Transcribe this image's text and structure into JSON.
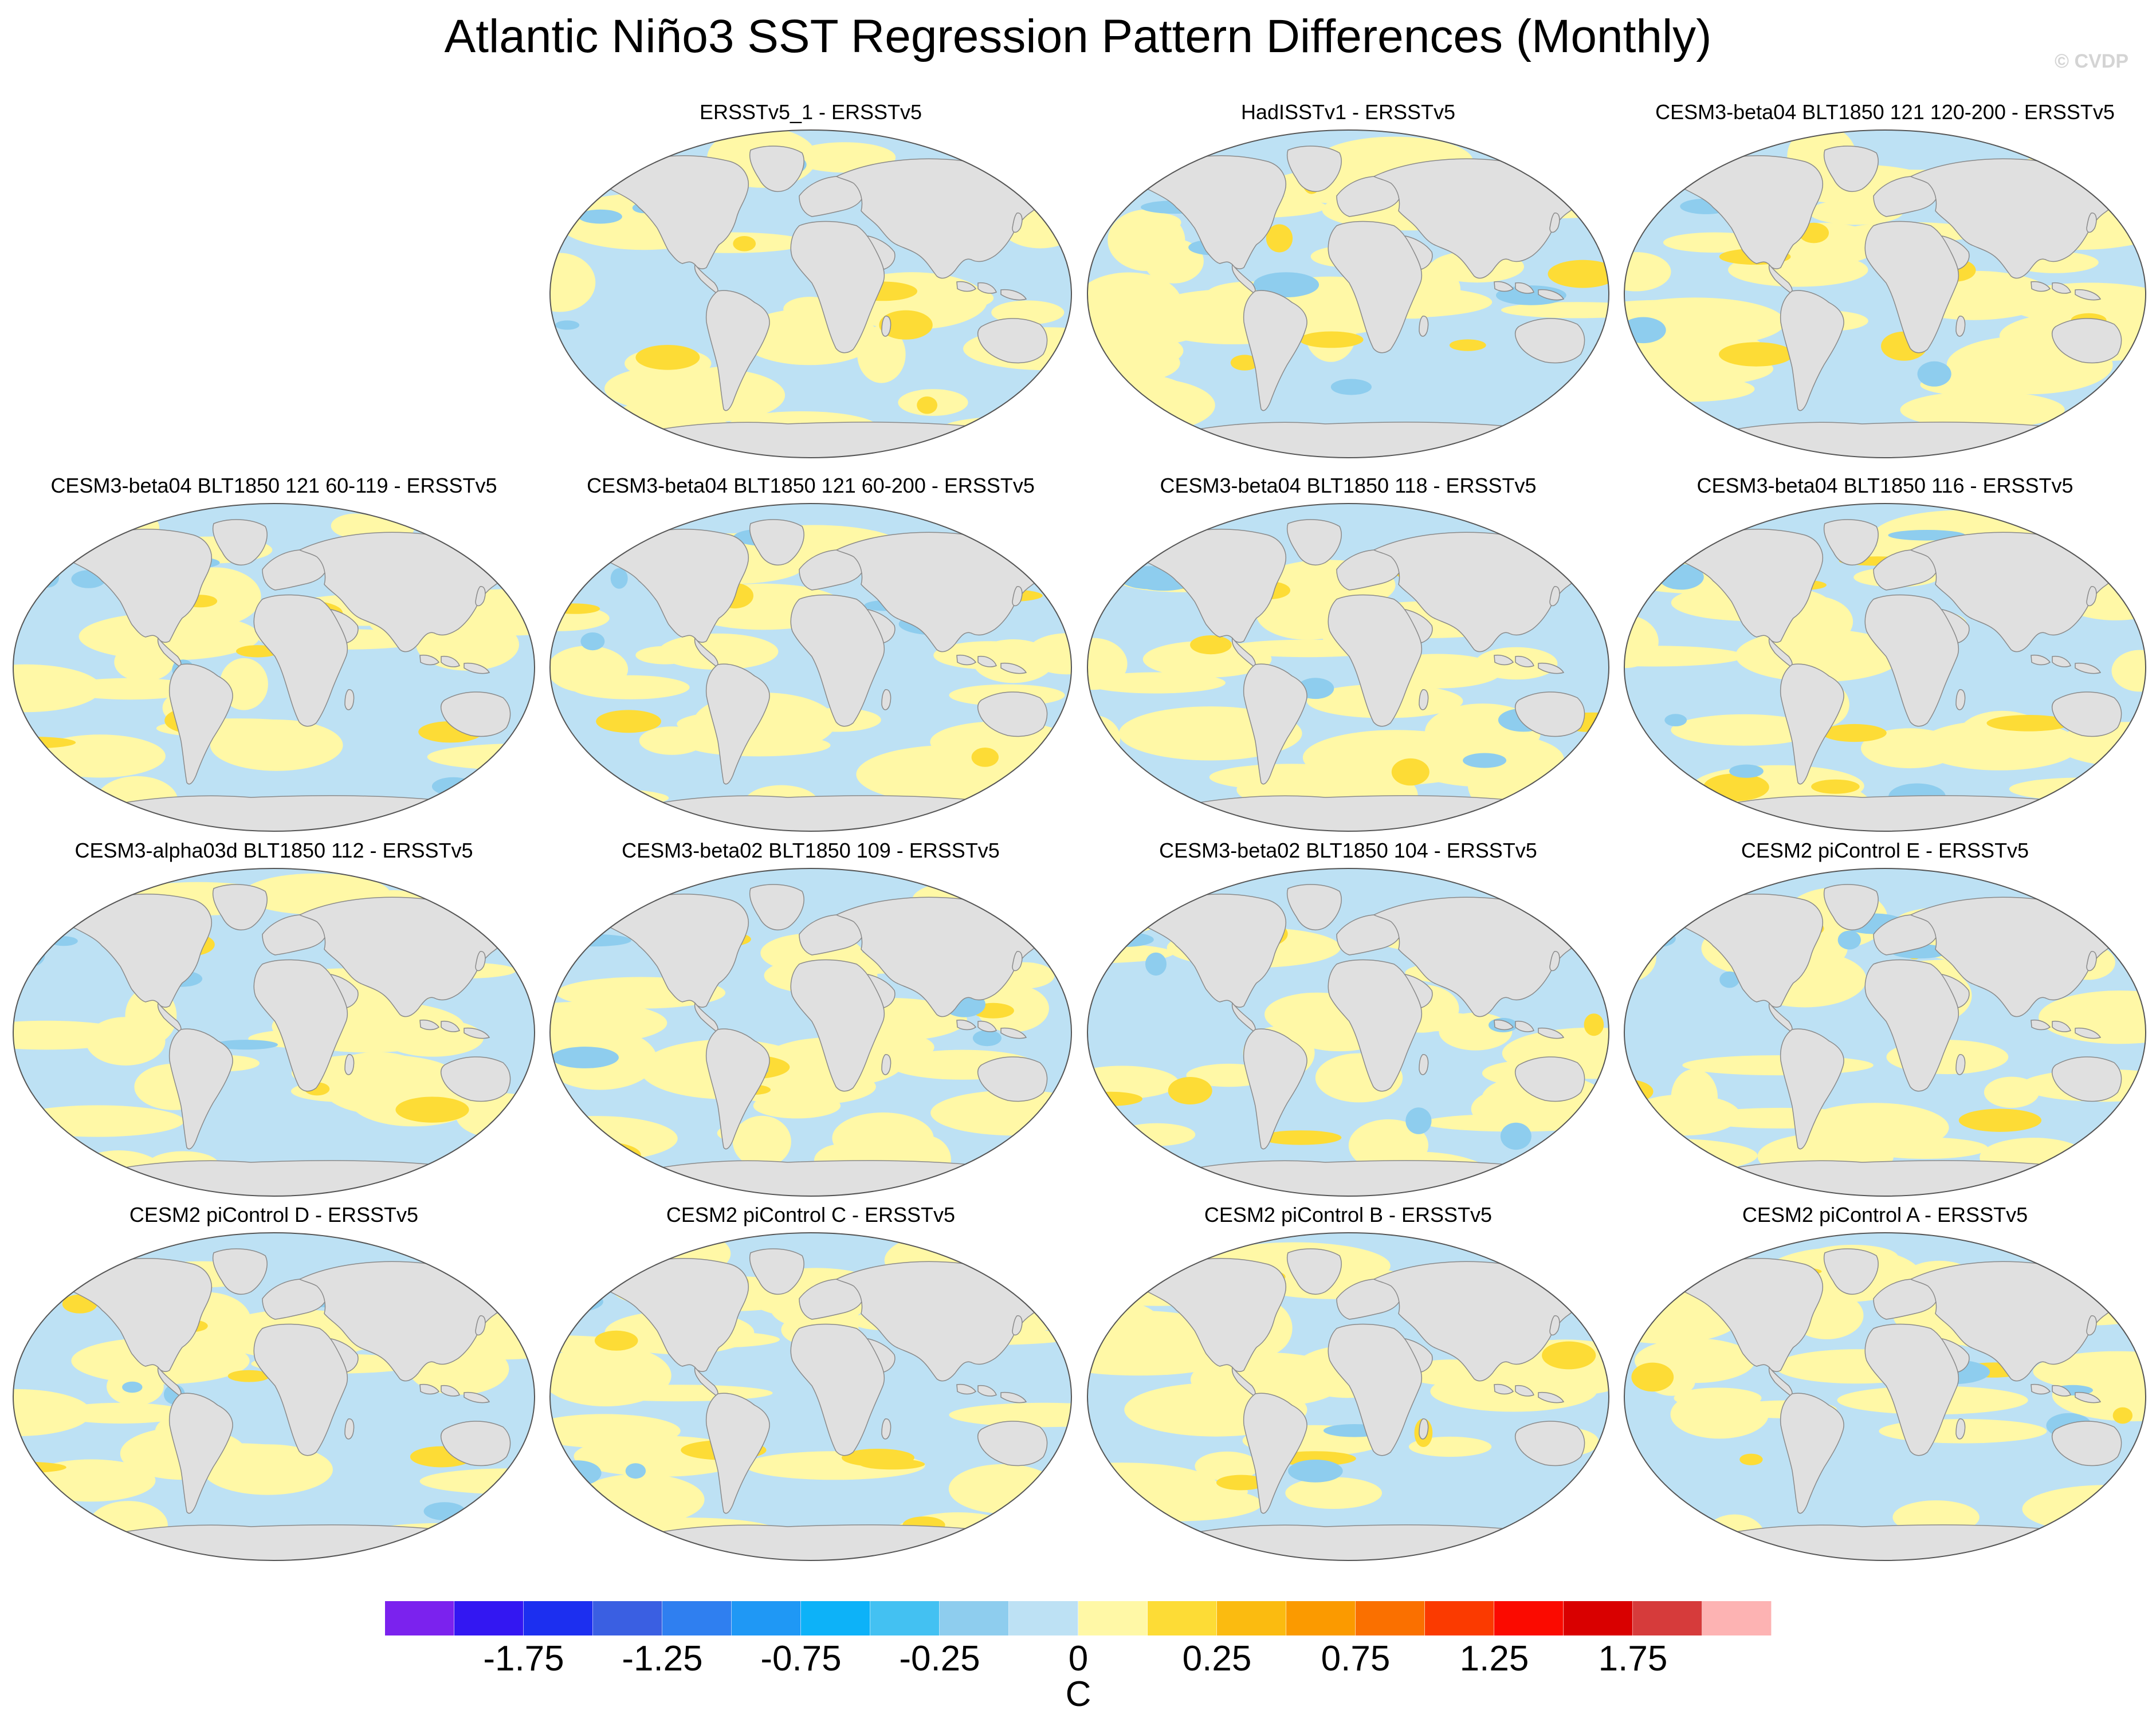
{
  "title": "Atlantic Niño3 SST Regression Pattern Differences (Monthly)",
  "watermark": "© CVDP",
  "panels": [
    {
      "title": "ERSSTv5_1 - ERSSTv5"
    },
    {
      "title": "HadISSTv1 - ERSSTv5"
    },
    {
      "title": "CESM3-beta04 BLT1850 121 120-200 - ERSSTv5"
    },
    {
      "title": "CESM3-beta04 BLT1850 121 60-119 - ERSSTv5"
    },
    {
      "title": "CESM3-beta04 BLT1850 121 60-200 - ERSSTv5"
    },
    {
      "title": "CESM3-beta04 BLT1850 118 - ERSSTv5"
    },
    {
      "title": "CESM3-beta04 BLT1850 116 - ERSSTv5"
    },
    {
      "title": "CESM3-alpha03d BLT1850 112 - ERSSTv5"
    },
    {
      "title": "CESM3-beta02 BLT1850 109 - ERSSTv5"
    },
    {
      "title": "CESM3-beta02 BLT1850 104 - ERSSTv5"
    },
    {
      "title": "CESM2 piControl E - ERSSTv5"
    },
    {
      "title": "CESM2 piControl D - ERSSTv5"
    },
    {
      "title": "CESM2 piControl C - ERSSTv5"
    },
    {
      "title": "CESM2 piControl B - ERSSTv5"
    },
    {
      "title": "CESM2 piControl A - ERSSTv5"
    }
  ],
  "colorbar": {
    "colors": [
      "#7b22ee",
      "#3317f2",
      "#1c2ff0",
      "#3a5fe2",
      "#2f7ff0",
      "#1f98f5",
      "#0db2f8",
      "#43c1f2",
      "#8ecdee",
      "#bde1f4",
      "#fff8a6",
      "#fddc36",
      "#fbbb10",
      "#fb9a00",
      "#fa7000",
      "#fb3a00",
      "#fb0a00",
      "#d90000",
      "#d63b3b",
      "#fdb3b3"
    ],
    "labels": [
      "-1.75",
      "-1.25",
      "-0.75",
      "-0.25",
      "0",
      "0.25",
      "0.75",
      "1.25",
      "1.75"
    ],
    "units": "C"
  }
}
